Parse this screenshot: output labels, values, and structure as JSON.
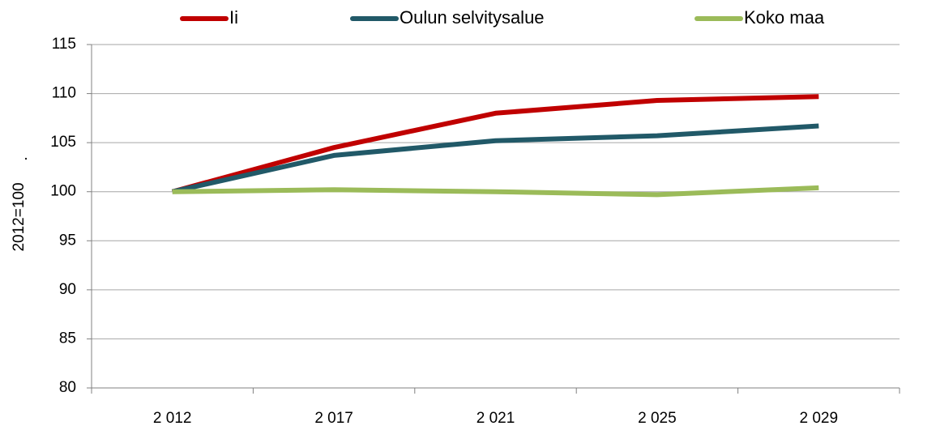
{
  "chart_data": {
    "type": "line",
    "ylabel": "2012=100",
    "annotation": ".",
    "categories": [
      "2 012",
      "2 017",
      "2 021",
      "2 025",
      "2 029"
    ],
    "series": [
      {
        "name": "Ii",
        "color": "#c00000",
        "values": [
          100,
          104.5,
          108,
          109.3,
          109.7
        ]
      },
      {
        "name": "Oulun selvitysalue",
        "color": "#215968",
        "values": [
          100,
          103.7,
          105.2,
          105.7,
          106.7
        ]
      },
      {
        "name": "Koko maa",
        "color": "#9bbb59",
        "values": [
          100,
          100.2,
          100,
          99.7,
          100.4
        ]
      }
    ],
    "ylim": [
      80,
      115
    ],
    "yticks": [
      80,
      85,
      90,
      95,
      100,
      105,
      110,
      115
    ],
    "grid": true,
    "legend": "top"
  }
}
